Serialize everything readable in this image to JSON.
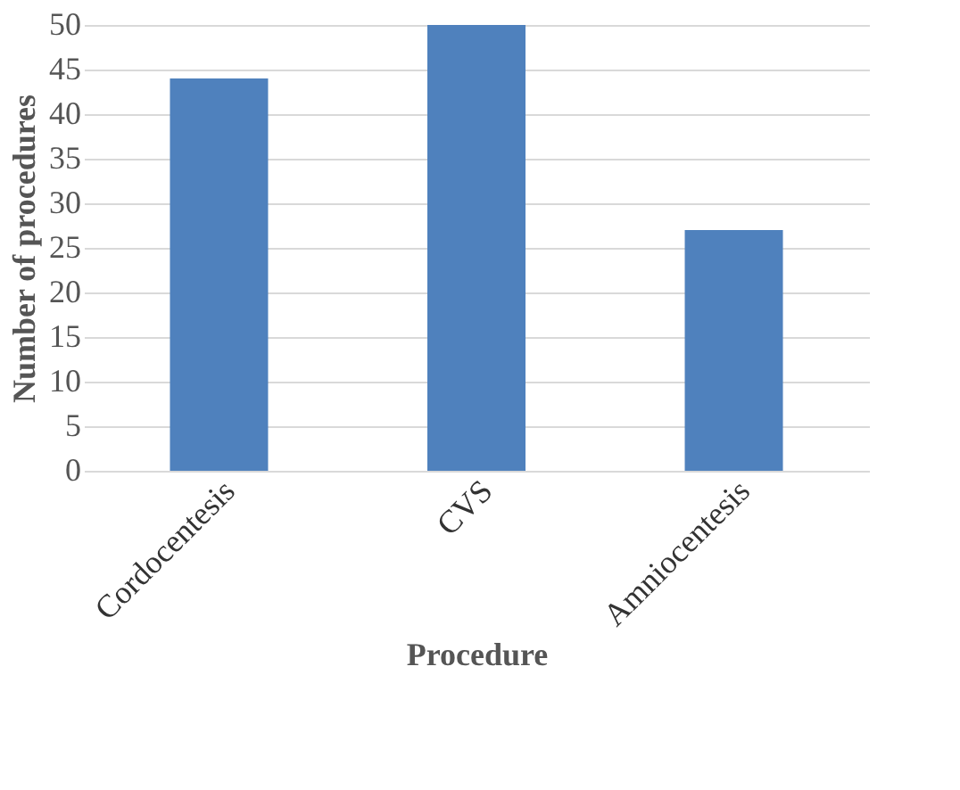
{
  "chart_data": {
    "type": "bar",
    "xlabel": "Procedure",
    "ylabel": "Number of procedures",
    "categories": [
      "Cordocentesis",
      "CVS",
      "Amniocentesis"
    ],
    "values": [
      44,
      50,
      27
    ],
    "color": "#4f81bd",
    "ylim": [
      0,
      50
    ],
    "yticks": [
      0,
      5,
      10,
      15,
      20,
      25,
      30,
      35,
      40,
      45,
      50
    ],
    "grid": "y"
  }
}
